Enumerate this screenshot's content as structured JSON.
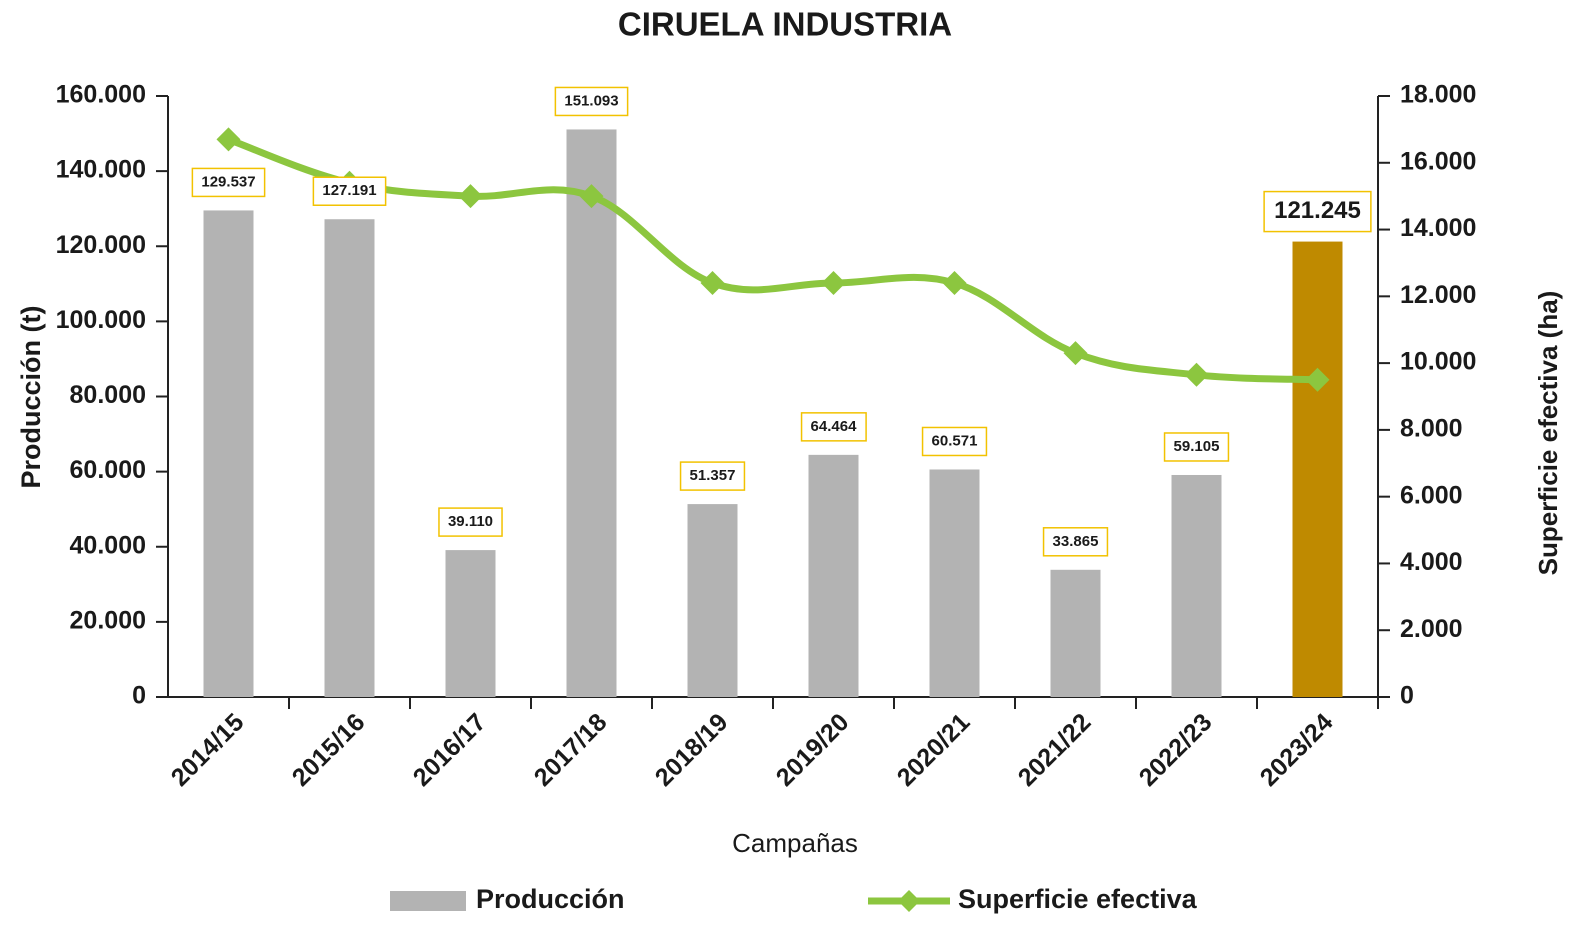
{
  "chart_data": {
    "type": "bar",
    "title": "CIRUELA INDUSTRIA",
    "x_label": "Campañas",
    "y_label": "Producción (t)",
    "y2_label": "Superficie efectiva (ha)",
    "categories": [
      "2014/15",
      "2015/16",
      "2016/17",
      "2017/18",
      "2018/19",
      "2019/20",
      "2020/21",
      "2021/22",
      "2022/23",
      "2023/24"
    ],
    "series": [
      {
        "name": "Producción",
        "type": "bar",
        "color": "#b3b3b3",
        "colors": [
          "#b3b3b3",
          "#b3b3b3",
          "#b3b3b3",
          "#b3b3b3",
          "#b3b3b3",
          "#b3b3b3",
          "#b3b3b3",
          "#b3b3b3",
          "#b3b3b3",
          "#bf8a00"
        ],
        "values": [
          129537,
          127191,
          39110,
          151093,
          51357,
          64464,
          60571,
          33865,
          59105,
          121245
        ],
        "value_labels": [
          "129.537",
          "127.191",
          "39.110",
          "151.093",
          "51.357",
          "64.464",
          "60.571",
          "33.865",
          "59.105",
          "121.245"
        ]
      },
      {
        "name": "Superficie efectiva",
        "type": "line",
        "axis": "y2",
        "color": "#8cc63f",
        "values": [
          16700,
          15400,
          15000,
          15000,
          12400,
          12400,
          12400,
          10300,
          9650,
          9500
        ]
      }
    ],
    "ylim": [
      0,
      160000
    ],
    "yticks": [
      0,
      {
        "value": 20000,
        "label": "20.000"
      },
      {
        "value": 40000,
        "label": "40.000"
      },
      {
        "value": 60000,
        "label": "60.000"
      },
      {
        "value": 80000,
        "label": "80.000"
      },
      {
        "value": 100000,
        "label": "100.000"
      },
      {
        "value": 120000,
        "label": "120.000"
      },
      {
        "value": 140000,
        "label": "140.000"
      },
      {
        "value": 160000,
        "label": "160.000"
      }
    ],
    "y2lim": [
      0,
      18000
    ],
    "y2ticks": [
      0,
      {
        "value": 2000,
        "label": "2.000"
      },
      {
        "value": 4000,
        "label": "4.000"
      },
      {
        "value": 6000,
        "label": "6.000"
      },
      {
        "value": 8000,
        "label": "8.000"
      },
      {
        "value": 10000,
        "label": "10.000"
      },
      {
        "value": 12000,
        "label": "12.000"
      },
      {
        "value": 14000,
        "label": "14.000"
      },
      {
        "value": 16000,
        "label": "16.000"
      },
      {
        "value": 18000,
        "label": "18.000"
      }
    ],
    "grid": false,
    "legend": "bottom"
  }
}
